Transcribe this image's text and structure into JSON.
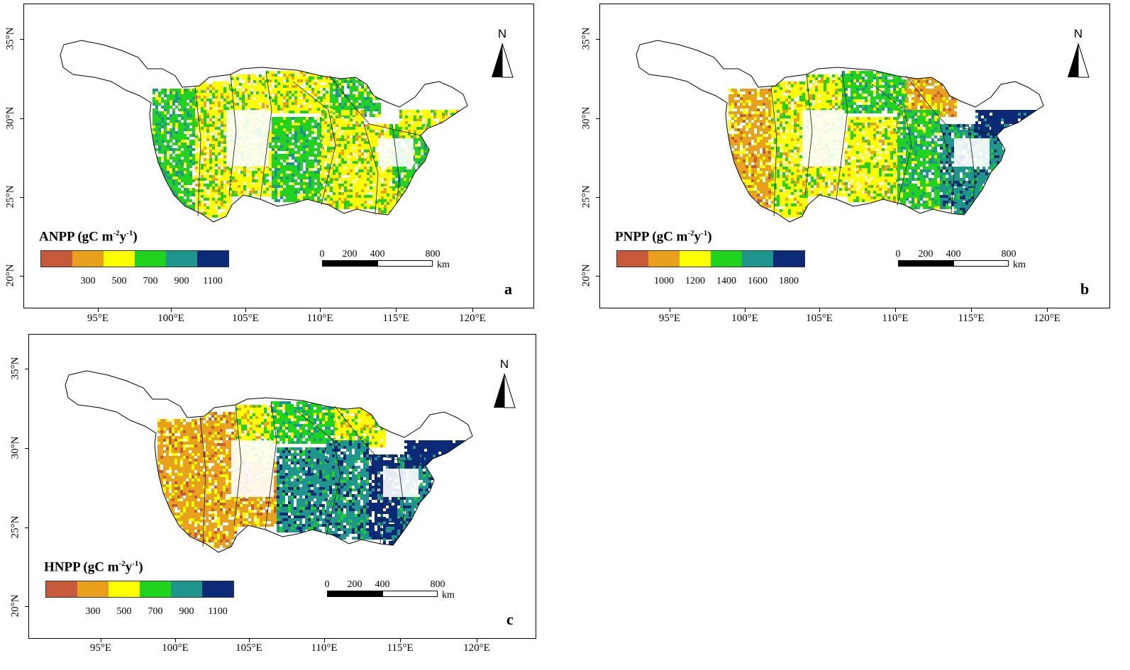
{
  "panels": [
    {
      "letter": "a",
      "title": "ANPP (gC m",
      "sup1": "-2",
      "mid": "y",
      "sup2": "-1",
      "close": ")",
      "legend_colors": [
        "#c85a3c",
        "#e9a01c",
        "#ffff00",
        "#1fd31f",
        "#1f968c",
        "#0d2a78"
      ],
      "legend_labels": [
        "300",
        "500",
        "700",
        "900",
        "1100"
      ],
      "palette": [
        "#c85a3c",
        "#e9a01c",
        "#ffff00",
        "#1fd31f",
        "#1f968c",
        "#0d2a78"
      ],
      "zones": [
        3,
        2,
        2,
        2,
        2,
        3,
        3,
        2,
        2,
        3,
        2,
        2
      ]
    },
    {
      "letter": "b",
      "title": "PNPP (gC m",
      "sup1": "-2",
      "mid": "y",
      "sup2": "-1",
      "close": ")",
      "legend_colors": [
        "#c85a3c",
        "#e9a01c",
        "#ffff00",
        "#1fd31f",
        "#1f968c",
        "#0d2a78"
      ],
      "legend_labels": [
        "1000",
        "1200",
        "1400",
        "1600",
        "1800"
      ],
      "palette": [
        "#c85a3c",
        "#e9a01c",
        "#ffff00",
        "#1fd31f",
        "#1f968c",
        "#0d2a78"
      ],
      "zones": [
        1,
        2,
        2,
        3,
        2,
        1,
        2,
        3,
        4,
        4,
        5,
        4
      ]
    },
    {
      "letter": "c",
      "title": "HNPP (gC m",
      "sup1": "-2",
      "mid": "y",
      "sup2": "-1",
      "close": ")",
      "legend_colors": [
        "#c85a3c",
        "#e9a01c",
        "#ffff00",
        "#1fd31f",
        "#1f968c",
        "#0d2a78"
      ],
      "legend_labels": [
        "300",
        "500",
        "700",
        "900",
        "1100"
      ],
      "palette": [
        "#c85a3c",
        "#e9a01c",
        "#ffff00",
        "#1fd31f",
        "#1f968c",
        "#0d2a78"
      ],
      "zones": [
        1,
        1,
        2,
        3,
        1,
        2,
        4,
        4,
        5,
        4,
        5,
        5
      ]
    }
  ],
  "lat_labels": [
    "35°N",
    "30°N",
    "25°N",
    "20°N"
  ],
  "lon_labels": [
    "95°E",
    "100°E",
    "105°E",
    "110°E",
    "115°E",
    "120°E"
  ],
  "scale_numbers": [
    "0",
    "200",
    "400",
    "800"
  ],
  "scale_unit": "km",
  "north_label": "N"
}
